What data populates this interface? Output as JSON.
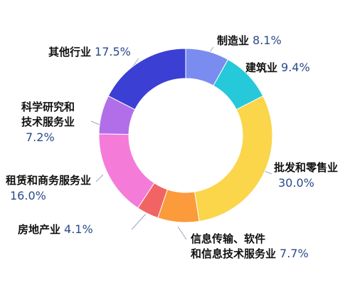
{
  "chart_data": {
    "type": "pie",
    "categories": [
      [
        "制造业"
      ],
      [
        "建筑业"
      ],
      [
        "批发和零售业"
      ],
      [
        "信息传输、软件",
        "和信息技术服务业"
      ],
      [
        "房地产业"
      ],
      [
        "租赁和商务服务业"
      ],
      [
        "科学研究和",
        "技术服务业"
      ],
      [
        "其他行业"
      ]
    ],
    "values": [
      8.1,
      9.4,
      30.0,
      7.7,
      4.1,
      16.0,
      7.2,
      17.5
    ],
    "value_labels": [
      "8.1%",
      "9.4%",
      "30.0%",
      "7.7%",
      "4.1%",
      "16.0%",
      "7.2%",
      "17.5%"
    ],
    "colors": [
      "#7b8cf0",
      "#25c9d9",
      "#fbd54a",
      "#fb9b3b",
      "#f26464",
      "#f57bd9",
      "#b26ee8",
      "#3b3fd4"
    ]
  }
}
